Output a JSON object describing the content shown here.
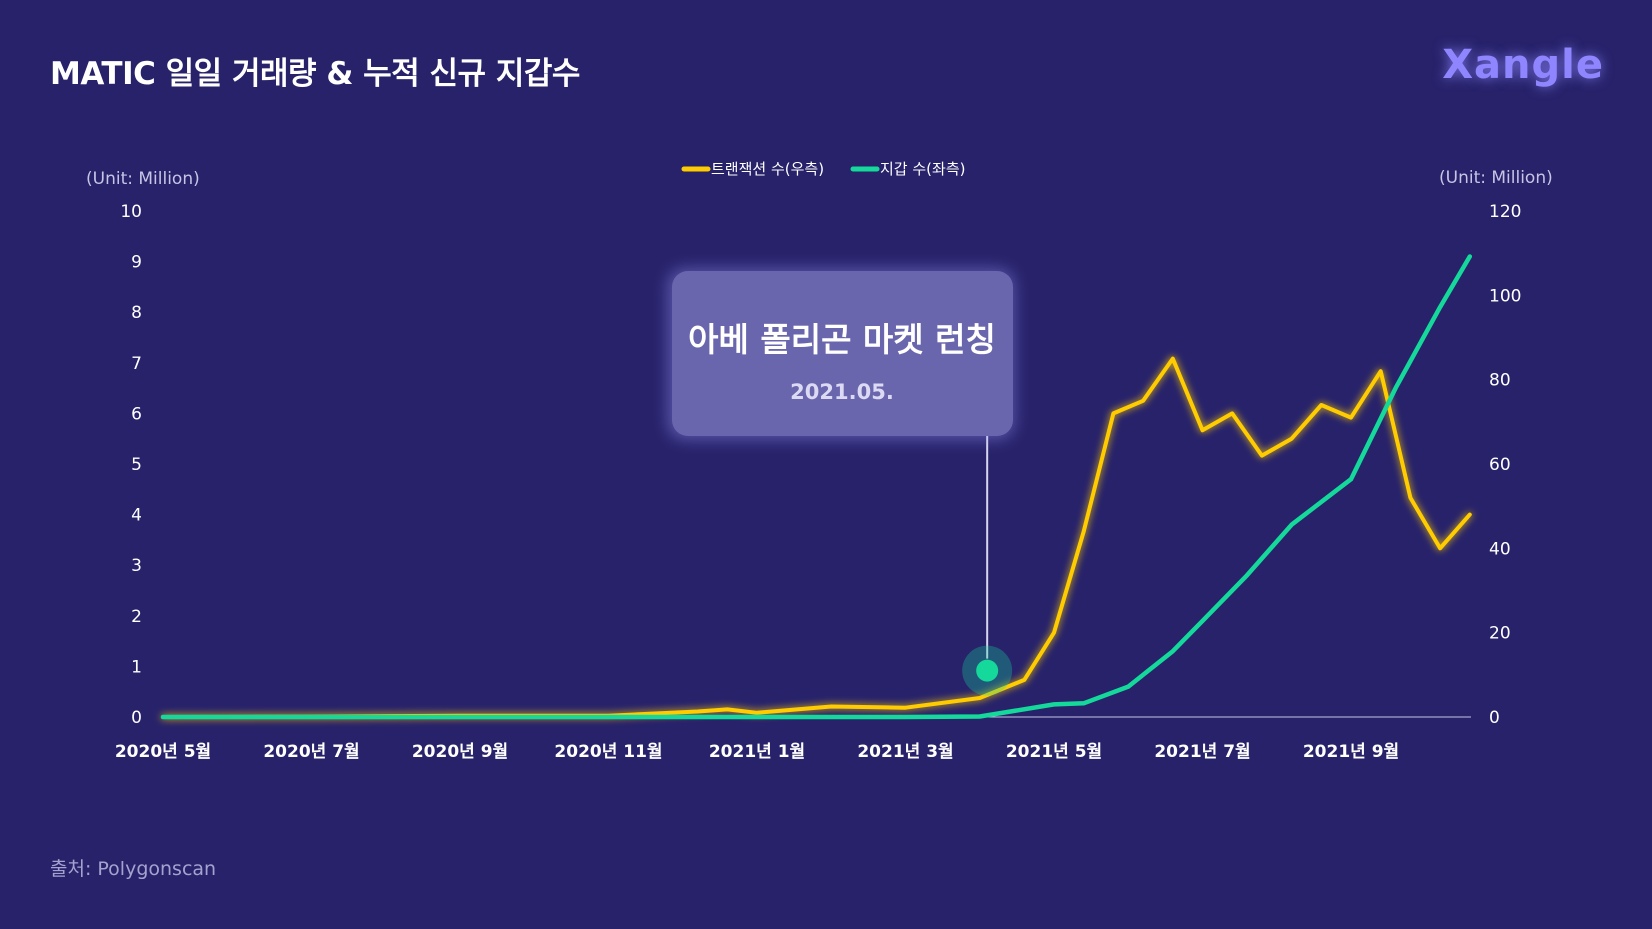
{
  "header": {
    "title": "MATIC 일일 거래량 & 누적 신규 지갑수",
    "logo": "Xangle"
  },
  "footer": {
    "source": "출처: Polygonscan"
  },
  "annotation": {
    "title": "아베 폴리곤 마켓 런칭",
    "subtitle": "2021.05."
  },
  "colors": {
    "background": "#27226a",
    "transactions": "#ffcc00",
    "wallets": "#14d99a",
    "callout": "#6a66ad"
  },
  "chart_data": {
    "type": "line",
    "x_tick_labels": [
      "2020년 5월",
      "2020년 7월",
      "2020년 9월",
      "2020년 11월",
      "2021년 1월",
      "2021년 3월",
      "2021년 5월",
      "2021년 7월",
      "2021년 9월"
    ],
    "left_axis": {
      "unit_label": "(Unit: Million)",
      "ylim": [
        0,
        10
      ],
      "ticks": [
        0,
        1,
        2,
        3,
        4,
        5,
        6,
        7,
        8,
        9,
        10
      ]
    },
    "right_axis": {
      "unit_label": "(Unit: Million)",
      "ylim": [
        0,
        120
      ],
      "ticks": [
        0,
        20,
        40,
        60,
        80,
        100,
        120
      ]
    },
    "legend_position": "top-center",
    "series": [
      {
        "name": "트랜잭션 수(우측)",
        "axis": "right",
        "color": "#ffcc00",
        "x": [
          0,
          1,
          2,
          3,
          3.6,
          3.8,
          4,
          4.5,
          5,
          5.5,
          5.8,
          6,
          6.2,
          6.4,
          6.6,
          6.8,
          7,
          7.2,
          7.4,
          7.6,
          7.8,
          8,
          8.2,
          8.4,
          8.6,
          8.8
        ],
        "values": [
          0,
          0.1,
          0.3,
          0.3,
          1.3,
          1.8,
          1.0,
          2.5,
          2.2,
          4.5,
          8.8,
          20,
          44,
          72,
          75,
          85,
          68,
          72,
          62,
          66,
          74,
          71,
          82,
          52,
          40,
          48
        ]
      },
      {
        "name": "지갑 수(좌측)",
        "axis": "left",
        "color": "#14d99a",
        "x": [
          0,
          1,
          2,
          3,
          4,
          5,
          5.5,
          6,
          6.2,
          6.5,
          6.8,
          7,
          7.3,
          7.6,
          8,
          8.3,
          8.6,
          8.8
        ],
        "values": [
          0,
          0,
          0,
          0,
          0,
          0,
          0.01,
          0.25,
          0.27,
          0.6,
          1.3,
          1.9,
          2.8,
          3.8,
          4.7,
          6.5,
          8.1,
          9.1
        ]
      }
    ],
    "highlight_point": {
      "series": "트랜잭션 수(우측)",
      "x": 5.55,
      "value": 11
    }
  }
}
